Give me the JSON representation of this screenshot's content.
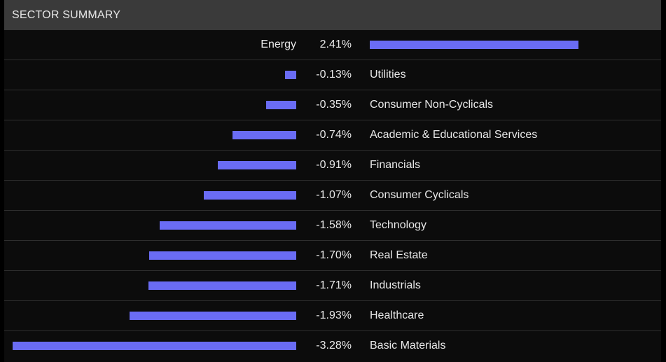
{
  "header": {
    "title": "SECTOR SUMMARY"
  },
  "colors": {
    "bar": "#6a6cf4",
    "header_bg": "#3a3a3a",
    "text": "#e8e8e8"
  },
  "chart_data": {
    "type": "bar",
    "orientation": "horizontal",
    "title": "SECTOR SUMMARY",
    "unit": "%",
    "categories": [
      "Energy",
      "Utilities",
      "Consumer Non-Cyclicals",
      "Academic & Educational Services",
      "Financials",
      "Consumer Cyclicals",
      "Technology",
      "Real Estate",
      "Industrials",
      "Healthcare",
      "Basic Materials"
    ],
    "values": [
      2.41,
      -0.13,
      -0.35,
      -0.74,
      -0.91,
      -1.07,
      -1.58,
      -1.7,
      -1.71,
      -1.93,
      -3.28
    ],
    "value_labels": [
      "2.41%",
      "-0.13%",
      "-0.35%",
      "-0.74%",
      "-0.91%",
      "-1.07%",
      "-1.58%",
      "-1.70%",
      "-1.71%",
      "-1.93%",
      "-3.28%"
    ]
  }
}
